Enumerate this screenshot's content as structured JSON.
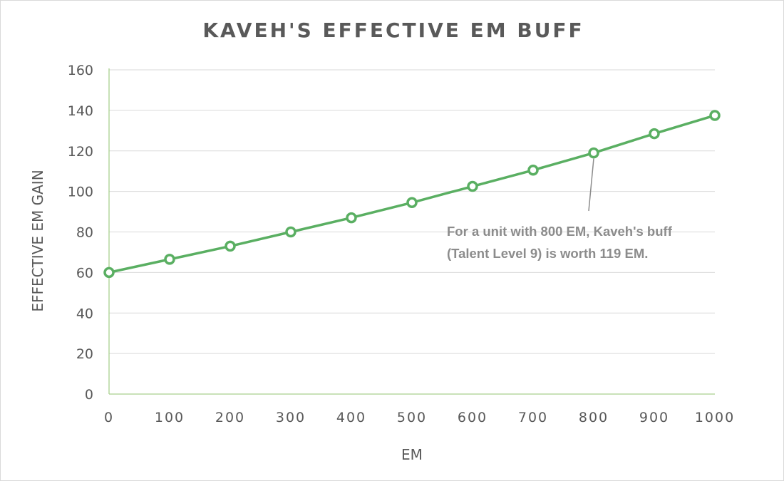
{
  "chart_data": {
    "type": "line",
    "title": "KAVEH'S EFFECTIVE EM BUFF",
    "xlabel": "EM",
    "ylabel": "EFFECTIVE  EM GAIN",
    "x": [
      0,
      100,
      200,
      300,
      400,
      500,
      600,
      700,
      800,
      900,
      1000
    ],
    "series": [
      {
        "values": [
          60,
          66.5,
          73,
          80,
          87,
          94.5,
          102.5,
          110.5,
          119,
          128.5,
          137.5
        ]
      }
    ],
    "xlim": [
      0,
      1000
    ],
    "ylim": [
      0,
      160
    ],
    "xticks": [
      "0",
      "100",
      "200",
      "300",
      "400",
      "500",
      "600",
      "700",
      "800",
      "900",
      "1000"
    ],
    "yticks": [
      "0",
      "20",
      "40",
      "60",
      "80",
      "100",
      "120",
      "140",
      "160"
    ],
    "grid": "horizontal",
    "legend": "none",
    "colors": {
      "line": "#5aaf62",
      "marker_fill": "#ffffff",
      "axis": "#a9d18e",
      "grid": "#d9d9d9",
      "text": "#595959",
      "annotation": "#8c8c8c"
    },
    "annotation": {
      "lines": [
        "For a unit with 800 EM, Kaveh's buff",
        "(Talent Level 9) is worth 119 EM."
      ],
      "target_x": 800,
      "target_y": 119
    }
  }
}
